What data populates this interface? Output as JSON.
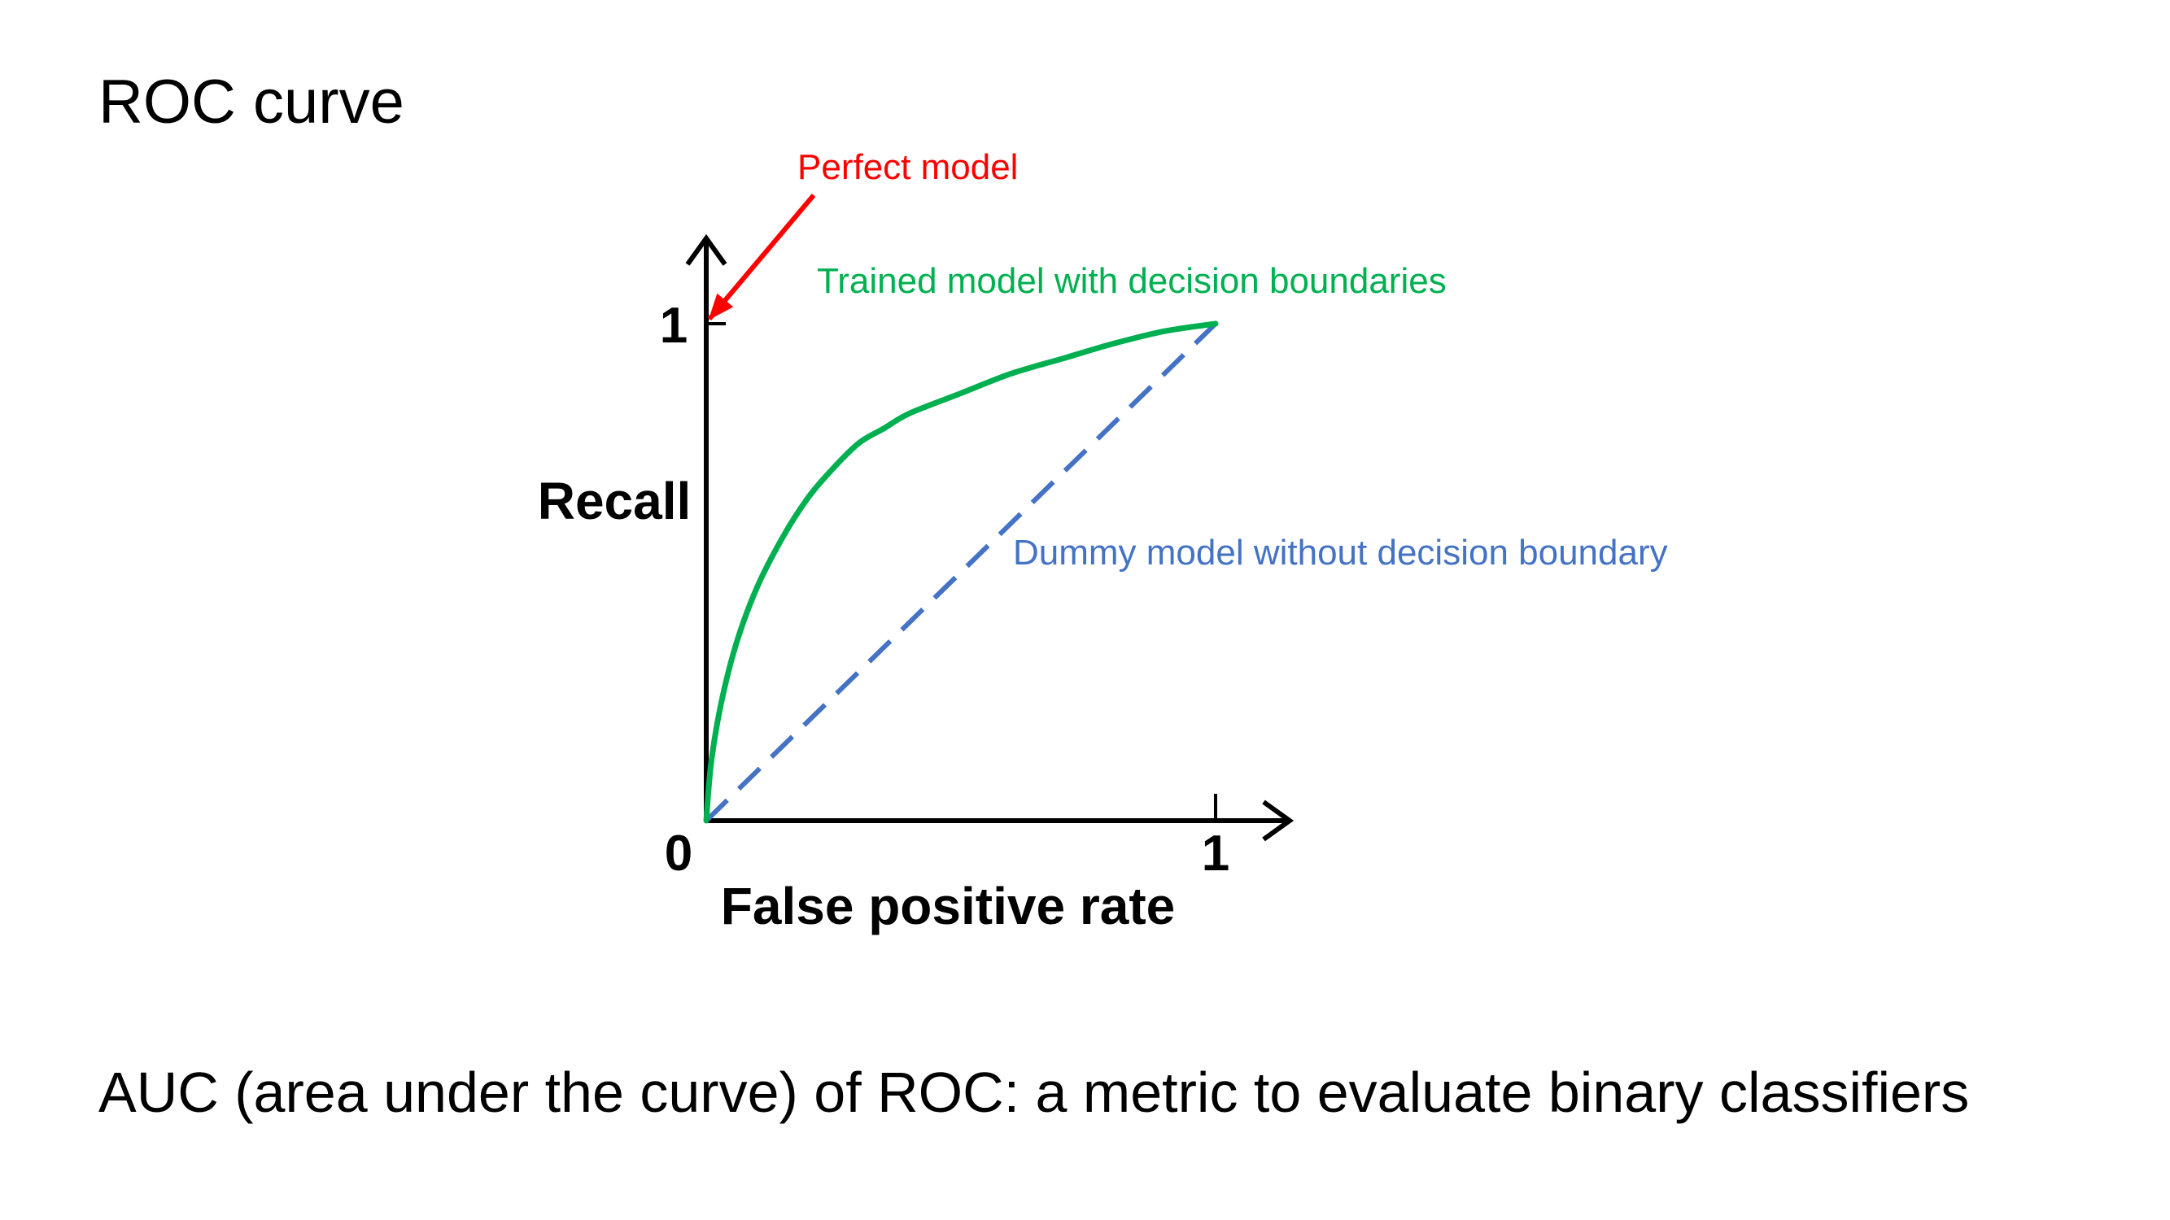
{
  "slide": {
    "title": "ROC curve",
    "caption": "AUC (area under the curve) of ROC: a metric to evaluate binary classifiers"
  },
  "colors": {
    "axis": "#000000",
    "trained": "#00b050",
    "dummy": "#4472c4",
    "perfect": "#ff0000"
  },
  "chart_data": {
    "type": "line",
    "title": "",
    "xlabel": "False positive rate",
    "ylabel": "Recall",
    "xlim": [
      0,
      1
    ],
    "ylim": [
      0,
      1
    ],
    "x_ticks": [
      "0",
      "1"
    ],
    "y_ticks": [
      "1"
    ],
    "grid": false,
    "series": [
      {
        "name": "Trained model with decision boundaries",
        "style": "solid",
        "x": [
          0,
          0.01,
          0.03,
          0.06,
          0.1,
          0.15,
          0.2,
          0.25,
          0.3,
          0.35,
          0.4,
          0.5,
          0.6,
          0.7,
          0.8,
          0.9,
          1.0
        ],
        "y": [
          0,
          0.12,
          0.24,
          0.36,
          0.47,
          0.57,
          0.65,
          0.71,
          0.76,
          0.79,
          0.82,
          0.86,
          0.9,
          0.93,
          0.96,
          0.985,
          1.0
        ]
      },
      {
        "name": "Dummy model without decision boundary",
        "style": "dashed",
        "x": [
          0,
          1
        ],
        "y": [
          0,
          1
        ]
      }
    ],
    "annotations": [
      {
        "text": "Perfect model",
        "points_to": [
          0,
          1
        ]
      }
    ]
  }
}
